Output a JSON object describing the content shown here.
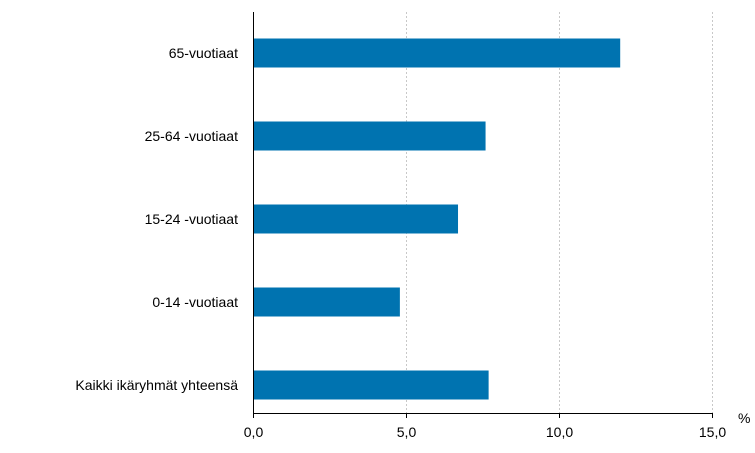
{
  "chart_data": {
    "type": "bar",
    "orientation": "horizontal",
    "categories": [
      "65-vuotiaat",
      "25-64 -vuotiaat",
      "15-24 -vuotiaat",
      "0-14 -vuotiaat",
      "Kaikki ikäryhmät yhteensä"
    ],
    "values": [
      12.0,
      7.6,
      6.7,
      4.8,
      7.7
    ],
    "xlim": [
      0,
      15
    ],
    "xticks": [
      0,
      5,
      10,
      15
    ],
    "xtick_labels": [
      "0,0",
      "5,0",
      "10,0",
      "15,0"
    ],
    "unit": "%",
    "grid": "vertical",
    "legend": "none",
    "colors": {
      "bar": "#0073b0"
    }
  }
}
